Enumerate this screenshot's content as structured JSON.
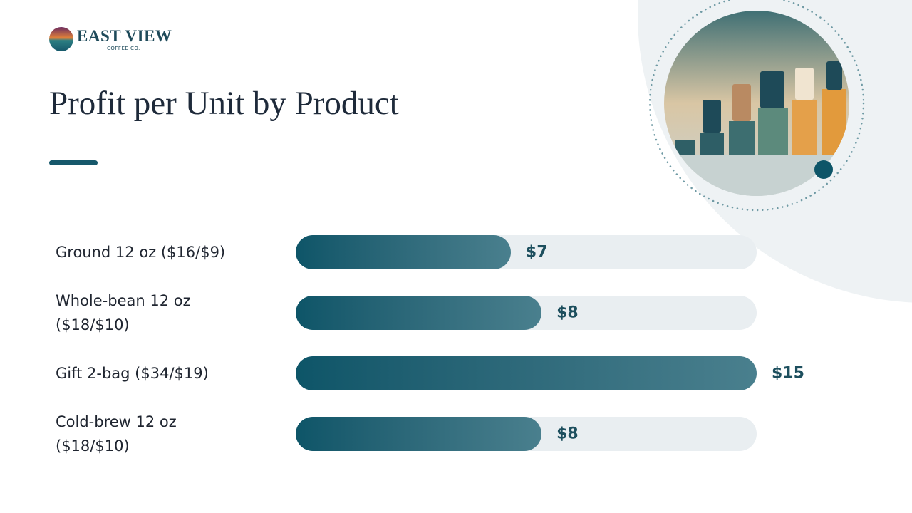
{
  "brand": {
    "name": "EAST VIEW",
    "tagline": "COFFEE CO."
  },
  "chart_data": {
    "type": "bar",
    "orientation": "horizontal",
    "title": "Profit per Unit by Product",
    "categories": [
      "Ground 12 oz ($16/$9)",
      "Whole-bean 12 oz ($18/$10)",
      "Gift 2-bag ($34/$19)",
      "Cold-brew 12 oz ($18/$10)"
    ],
    "values": [
      7,
      8,
      15,
      8
    ],
    "value_labels": [
      "$7",
      "$8",
      "$15",
      "$8"
    ],
    "color": "#0d5568"
  }
}
